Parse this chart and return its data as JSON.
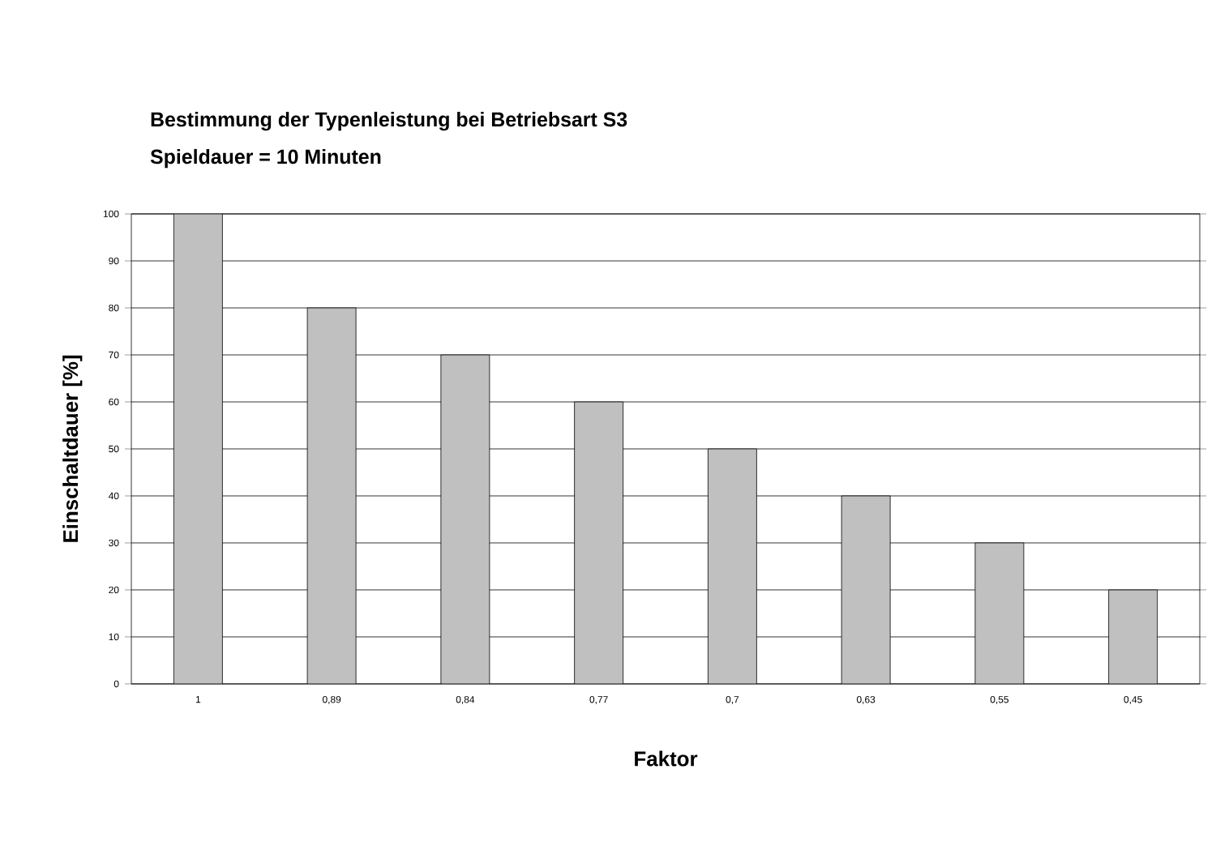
{
  "chart_data": {
    "type": "bar",
    "title": "Bestimmung der Typenleistung bei Betriebsart S3",
    "subtitle": "Spieldauer = 10 Minuten",
    "xlabel": "Faktor",
    "ylabel": "Einschaltdauer [%]",
    "categories": [
      "1",
      "0,89",
      "0,84",
      "0,77",
      "0,7",
      "0,63",
      "0,55",
      "0,45"
    ],
    "values": [
      100,
      80,
      70,
      60,
      50,
      40,
      30,
      20
    ],
    "color": "#c0c0c0",
    "ylim": [
      0,
      100
    ],
    "yticks": [
      0,
      10,
      20,
      30,
      40,
      50,
      60,
      70,
      80,
      90,
      100
    ],
    "grid": "y"
  }
}
